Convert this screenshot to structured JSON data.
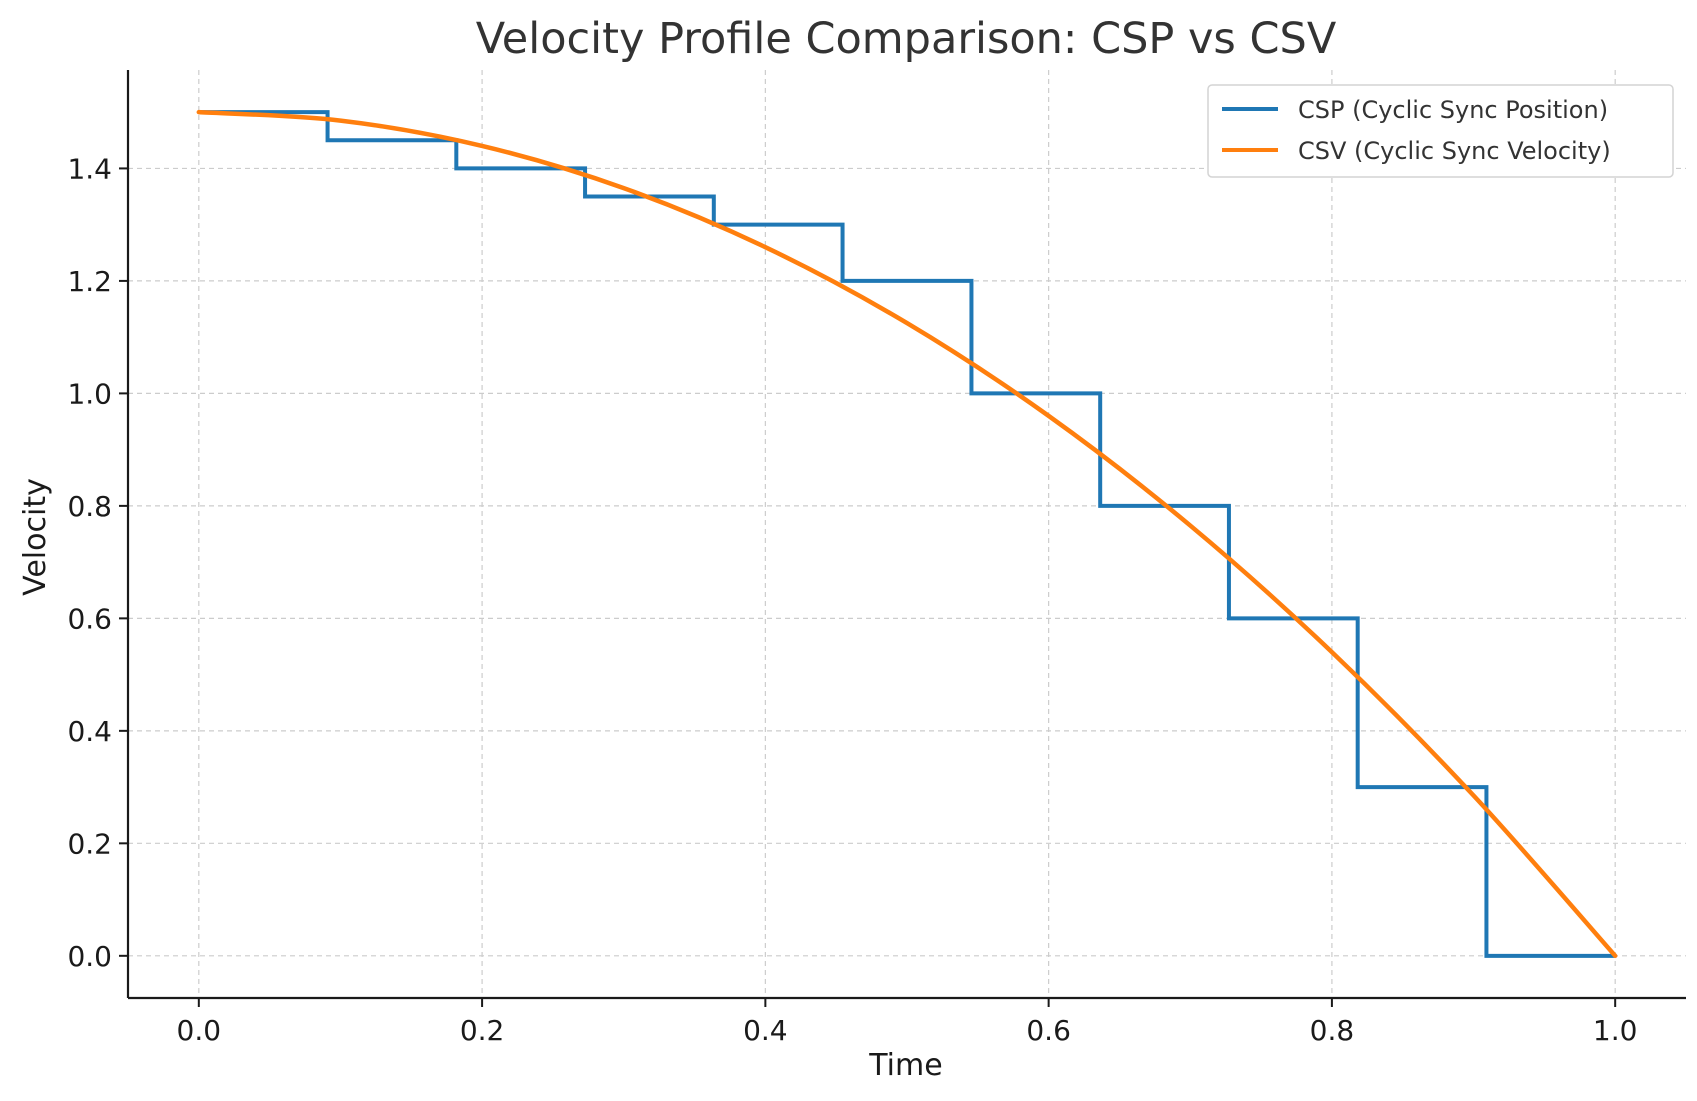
{
  "chart_data": {
    "type": "line",
    "title": "Velocity Profile Comparison: CSP vs CSV",
    "xlabel": "Time",
    "ylabel": "Velocity",
    "xlim": [
      -0.05,
      1.05
    ],
    "ylim": [
      -0.075,
      1.575
    ],
    "xticks": [
      0.0,
      0.2,
      0.4,
      0.6,
      0.8,
      1.0
    ],
    "xtick_labels": [
      "0.0",
      "0.2",
      "0.4",
      "0.6",
      "0.8",
      "1.0"
    ],
    "yticks": [
      0.0,
      0.2,
      0.4,
      0.6,
      0.8,
      1.0,
      1.2,
      1.4
    ],
    "ytick_labels": [
      "0.0",
      "0.2",
      "0.4",
      "0.6",
      "0.8",
      "1.0",
      "1.2",
      "1.4"
    ],
    "grid": true,
    "legend_position": "top-right",
    "series": [
      {
        "name": "CSP (Cyclic Sync Position)",
        "style": "step",
        "color": "#1f77b4",
        "x": [
          0.0,
          0.0909,
          0.1818,
          0.2727,
          0.3636,
          0.4545,
          0.5455,
          0.6364,
          0.7273,
          0.8182,
          0.9091,
          1.0
        ],
        "values": [
          1.5,
          1.45,
          1.4,
          1.35,
          1.3,
          1.2,
          1.0,
          0.8,
          0.6,
          0.3,
          0.0,
          0.0
        ]
      },
      {
        "name": "CSV (Cyclic Sync Velocity)",
        "style": "line",
        "color": "#ff7f0e",
        "x": [
          0.0,
          0.1,
          0.2,
          0.3,
          0.4,
          0.5,
          0.6,
          0.7,
          0.8,
          0.9,
          1.0
        ],
        "values": [
          1.5,
          1.485,
          1.44,
          1.365,
          1.26,
          1.125,
          0.96,
          0.765,
          0.54,
          0.285,
          0.0
        ]
      }
    ]
  }
}
